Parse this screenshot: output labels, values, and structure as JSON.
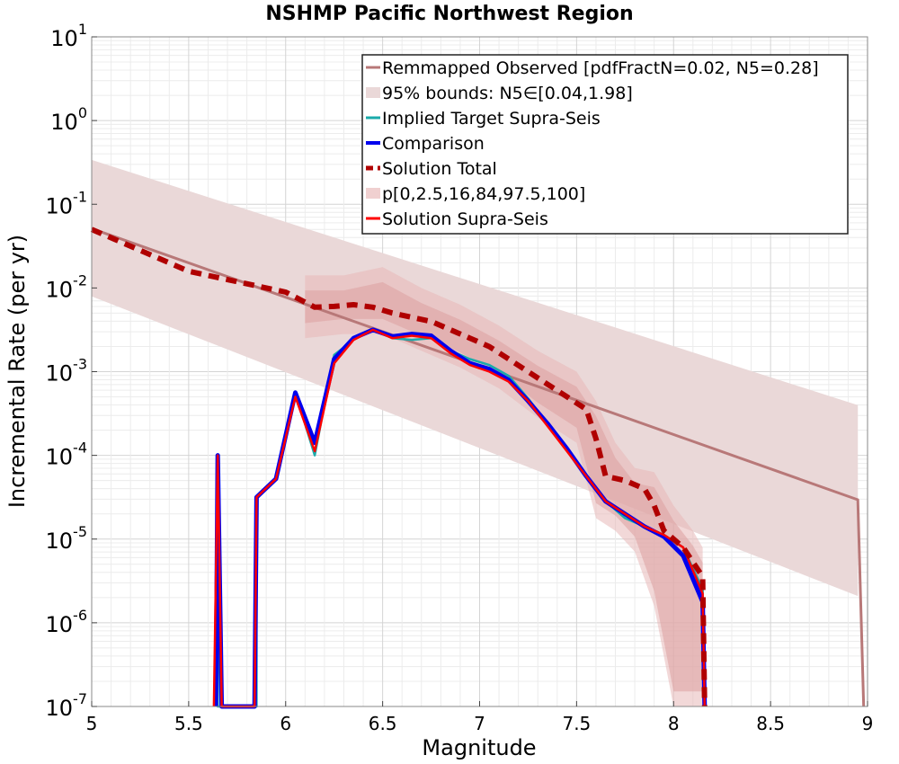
{
  "chart_data": {
    "type": "line",
    "title": "NSHMP Pacific Northwest Region",
    "xlabel": "Magnitude",
    "ylabel": "Incremental Rate (per yr)",
    "xlim": [
      5,
      9
    ],
    "ylim_log10": [
      -7,
      1
    ],
    "y_scale": "log",
    "grid": true,
    "legend_position": "top-right",
    "x_ticks": [
      {
        "value": 5,
        "label": "5"
      },
      {
        "value": 5.5,
        "label": "5.5"
      },
      {
        "value": 6,
        "label": "6"
      },
      {
        "value": 6.5,
        "label": "6.5"
      },
      {
        "value": 7,
        "label": "7"
      },
      {
        "value": 7.5,
        "label": "7.5"
      },
      {
        "value": 8,
        "label": "8"
      },
      {
        "value": 8.5,
        "label": "8.5"
      },
      {
        "value": 9,
        "label": "9"
      }
    ],
    "y_ticks": [
      {
        "value": 1,
        "base": "10",
        "exp": "1"
      },
      {
        "value": 0,
        "base": "10",
        "exp": "0"
      },
      {
        "value": -1,
        "base": "10",
        "exp": "-1"
      },
      {
        "value": -2,
        "base": "10",
        "exp": "-2"
      },
      {
        "value": -3,
        "base": "10",
        "exp": "-3"
      },
      {
        "value": -4,
        "base": "10",
        "exp": "-4"
      },
      {
        "value": -5,
        "base": "10",
        "exp": "-5"
      },
      {
        "value": -6,
        "base": "10",
        "exp": "-6"
      },
      {
        "value": -7,
        "base": "10",
        "exp": "-7"
      }
    ],
    "legend": [
      {
        "label": "Remmapped Observed [pdfFractN=0.02, N5=0.28]",
        "kind": "line",
        "color": "#b87878"
      },
      {
        "label": "95% bounds: N5∈[0.04,1.98]",
        "kind": "fill",
        "color": "#ead8d8"
      },
      {
        "label": "Implied Target Supra-Seis",
        "kind": "line",
        "color": "#1aaaaa"
      },
      {
        "label": "Comparison",
        "kind": "line",
        "color": "#0000ee"
      },
      {
        "label": "Solution Total",
        "kind": "dashed",
        "color": "#b00000"
      },
      {
        "label": "p[0,2.5,16,84,97.5,100]",
        "kind": "fill",
        "color": "#f0d0d0"
      },
      {
        "label": "Solution Supra-Seis",
        "kind": "line",
        "color": "#ff0000"
      }
    ],
    "series": [
      {
        "name": "Remmapped Observed [pdfFractN=0.02, N5=0.28]",
        "color": "#b87878",
        "x": [
          5.0,
          8.95,
          8.98
        ],
        "log10y": [
          -1.29,
          -4.53,
          -7.0
        ]
      },
      {
        "name": "95% bounds: N5∈[0.04,1.98]",
        "color": "#ead8d8",
        "x": [
          5.0,
          8.95
        ],
        "log10y_upper": [
          -0.47,
          -3.4
        ],
        "log10y_lower": [
          -2.1,
          -5.68
        ]
      },
      {
        "name": "p[0,2.5,16,84,97.5,100]",
        "color": "#e8b8b8",
        "x": [
          6.1,
          6.3,
          6.5,
          6.7,
          6.9,
          7.1,
          7.3,
          7.5,
          7.6,
          7.7,
          7.8,
          7.9,
          8.0,
          8.1,
          8.15
        ],
        "log10y_upper": [
          -1.85,
          -1.85,
          -1.75,
          -2.0,
          -2.2,
          -2.45,
          -2.75,
          -3.0,
          -3.35,
          -3.85,
          -4.15,
          -4.2,
          -4.6,
          -4.9,
          -5.1
        ],
        "log10y_lower": [
          -2.6,
          -2.55,
          -2.55,
          -2.75,
          -2.95,
          -3.2,
          -3.55,
          -3.85,
          -4.75,
          -4.9,
          -5.15,
          -5.8,
          -7.0,
          -7.0,
          -7.0
        ]
      },
      {
        "name": "Implied Target Supra-Seis",
        "color": "#1aaaaa",
        "x": [
          5.65,
          5.65,
          5.65,
          5.65,
          5.85,
          5.85,
          5.95,
          6.05,
          6.15,
          6.25,
          6.35,
          6.45,
          6.55,
          6.65,
          6.75,
          6.85,
          6.95,
          7.05,
          7.15,
          7.25,
          7.35,
          7.45,
          7.55,
          7.65,
          7.75,
          7.85,
          7.95,
          8.05,
          8.15,
          8.16
        ],
        "log10y": [
          -7.0,
          -4.0,
          -4.0,
          -7.0,
          -7.0,
          -4.5,
          -4.28,
          -3.25,
          -4.0,
          -2.8,
          -2.62,
          -2.5,
          -2.6,
          -2.62,
          -2.6,
          -2.75,
          -2.85,
          -2.92,
          -3.05,
          -3.32,
          -3.62,
          -3.92,
          -4.25,
          -4.55,
          -4.75,
          -4.85,
          -4.95,
          -5.1,
          -5.6,
          -7.0
        ]
      },
      {
        "name": "Comparison",
        "color": "#0000ee",
        "x": [
          5.64,
          5.65,
          5.67,
          5.84,
          5.85,
          5.95,
          6.05,
          6.15,
          6.25,
          6.35,
          6.45,
          6.55,
          6.65,
          6.75,
          6.85,
          6.95,
          7.05,
          7.15,
          7.25,
          7.35,
          7.45,
          7.55,
          7.65,
          7.75,
          7.85,
          7.95,
          8.05,
          8.15,
          8.16
        ],
        "log10y": [
          -7.0,
          -4.0,
          -7.0,
          -7.0,
          -4.5,
          -4.28,
          -3.25,
          -3.85,
          -2.85,
          -2.6,
          -2.5,
          -2.58,
          -2.55,
          -2.57,
          -2.75,
          -2.9,
          -2.97,
          -3.1,
          -3.35,
          -3.62,
          -3.92,
          -4.25,
          -4.55,
          -4.7,
          -4.85,
          -4.97,
          -5.2,
          -5.75,
          -7.0
        ]
      },
      {
        "name": "Solution Total",
        "color": "#b00000",
        "x": [
          5.0,
          5.5,
          6.0,
          6.15,
          6.25,
          6.35,
          6.45,
          6.55,
          6.65,
          6.75,
          6.85,
          6.95,
          7.05,
          7.15,
          7.25,
          7.35,
          7.45,
          7.55,
          7.6,
          7.65,
          7.75,
          7.85,
          7.9,
          7.95,
          8.05,
          8.15,
          8.16
        ],
        "log10y": [
          -1.3,
          -1.8,
          -2.05,
          -2.23,
          -2.22,
          -2.2,
          -2.23,
          -2.3,
          -2.35,
          -2.4,
          -2.5,
          -2.6,
          -2.7,
          -2.85,
          -3.0,
          -3.15,
          -3.3,
          -3.45,
          -3.8,
          -4.25,
          -4.3,
          -4.4,
          -4.6,
          -4.9,
          -5.1,
          -5.45,
          -7.0
        ]
      },
      {
        "name": "Solution Supra-Seis",
        "color": "#ff0000",
        "x": [
          5.63,
          5.65,
          5.67,
          5.84,
          5.85,
          5.95,
          6.05,
          6.15,
          6.25,
          6.35,
          6.45,
          6.55,
          6.65,
          6.75,
          6.85,
          6.95,
          7.05,
          7.15,
          7.25,
          7.35,
          7.45,
          7.55,
          7.65,
          7.75,
          7.85,
          7.95,
          8.05,
          8.15,
          8.16
        ],
        "log10y": [
          -7.0,
          -4.0,
          -7.0,
          -7.0,
          -4.5,
          -4.28,
          -3.3,
          -3.95,
          -2.9,
          -2.62,
          -2.5,
          -2.6,
          -2.57,
          -2.6,
          -2.78,
          -2.92,
          -3.0,
          -3.12,
          -3.35,
          -3.65,
          -3.95,
          -4.25,
          -4.55,
          -4.7,
          -4.85,
          -4.95,
          -5.1,
          -5.65,
          -7.0
        ]
      }
    ]
  }
}
